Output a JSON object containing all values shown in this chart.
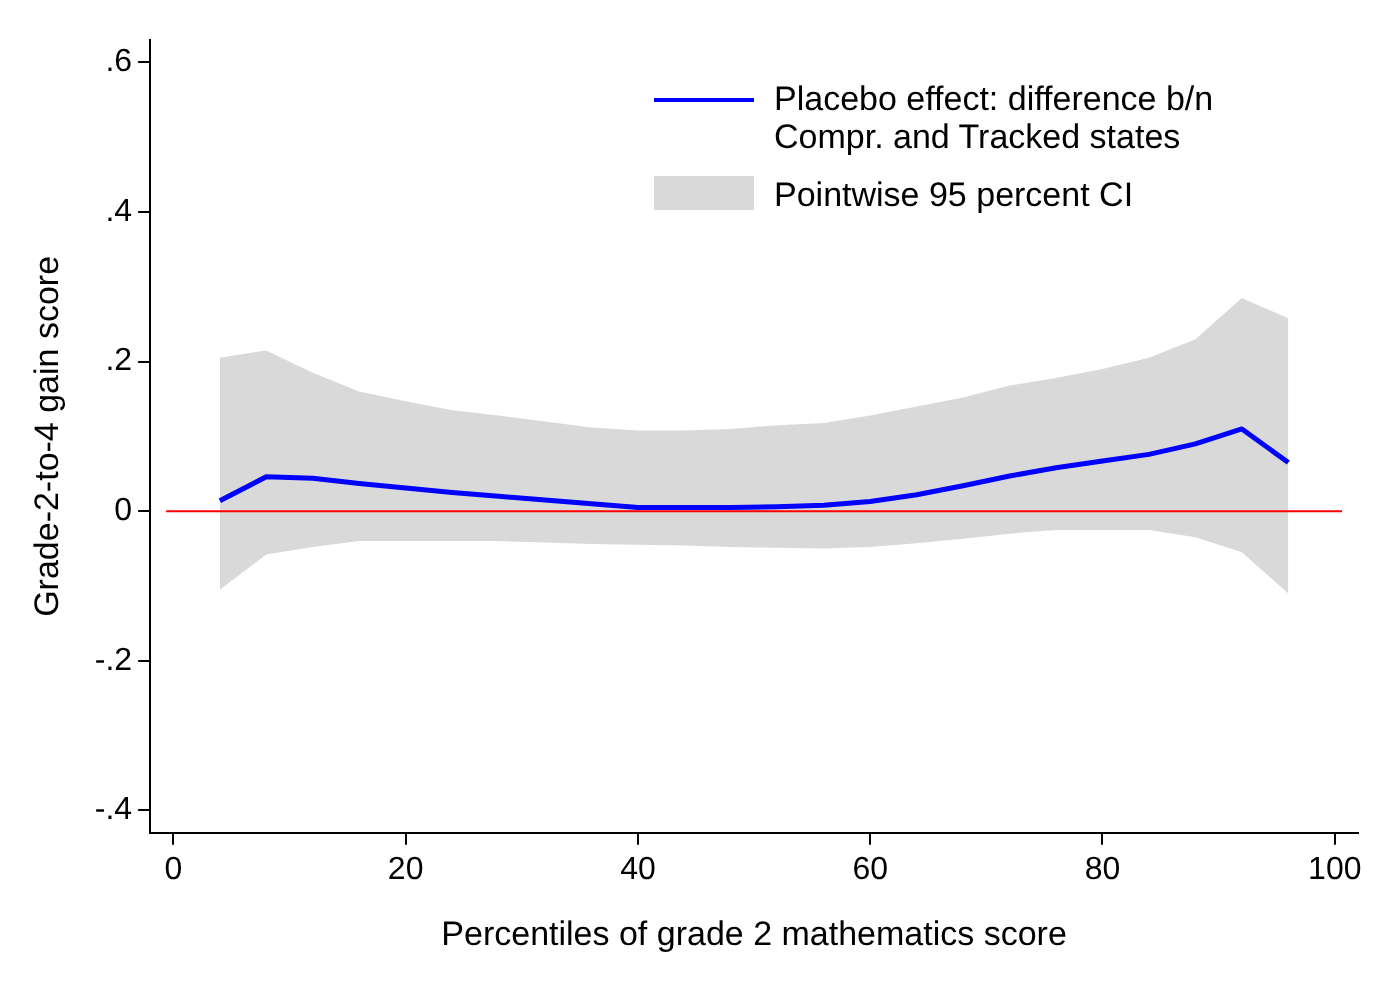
{
  "chart_data": {
    "type": "line",
    "xlabel": "Percentiles of grade 2 mathematics score",
    "ylabel": "Grade-2-to-4 gain score",
    "x": [
      4,
      8,
      12,
      16,
      20,
      24,
      28,
      32,
      36,
      40,
      44,
      48,
      52,
      56,
      60,
      64,
      68,
      72,
      76,
      80,
      84,
      88,
      92,
      96
    ],
    "series": [
      {
        "name": "Placebo effect: difference b/n Compr. and Tracked states",
        "color": "#0000ff",
        "values": [
          0.014,
          0.046,
          0.044,
          0.037,
          0.031,
          0.025,
          0.02,
          0.015,
          0.01,
          0.005,
          0.005,
          0.005,
          0.006,
          0.008,
          0.013,
          0.022,
          0.034,
          0.047,
          0.058,
          0.067,
          0.076,
          0.09,
          0.11,
          0.065
        ],
        "lower": [
          -0.105,
          -0.058,
          -0.048,
          -0.04,
          -0.04,
          -0.04,
          -0.04,
          -0.042,
          -0.044,
          -0.045,
          -0.046,
          -0.048,
          -0.049,
          -0.05,
          -0.048,
          -0.043,
          -0.037,
          -0.03,
          -0.025,
          -0.025,
          -0.025,
          -0.035,
          -0.055,
          -0.11
        ],
        "upper": [
          0.205,
          0.215,
          0.185,
          0.16,
          0.147,
          0.135,
          0.128,
          0.12,
          0.112,
          0.108,
          0.108,
          0.11,
          0.115,
          0.118,
          0.128,
          0.14,
          0.152,
          0.168,
          0.178,
          0.19,
          0.205,
          0.23,
          0.285,
          0.258
        ]
      }
    ],
    "annotations": [
      "Pointwise 95 percent CI"
    ],
    "xlim": [
      -2,
      102
    ],
    "xticks": [
      0,
      20,
      40,
      60,
      80,
      100
    ],
    "ylim": [
      -0.43,
      0.63
    ],
    "yticks": [
      {
        "value": -0.4,
        "label": "-.4"
      },
      {
        "value": -0.2,
        "label": "-.2"
      },
      {
        "value": 0,
        "label": "0"
      },
      {
        "value": 0.2,
        "label": ".2"
      },
      {
        "value": 0.4,
        "label": ".4"
      },
      {
        "value": 0.6,
        "label": ".6"
      }
    ],
    "ref_lines": [
      {
        "axis": "y",
        "value": 0,
        "color": "#ff0000"
      }
    ],
    "grid": false,
    "legend": "top right",
    "marker": "none",
    "line_style": "solid"
  }
}
